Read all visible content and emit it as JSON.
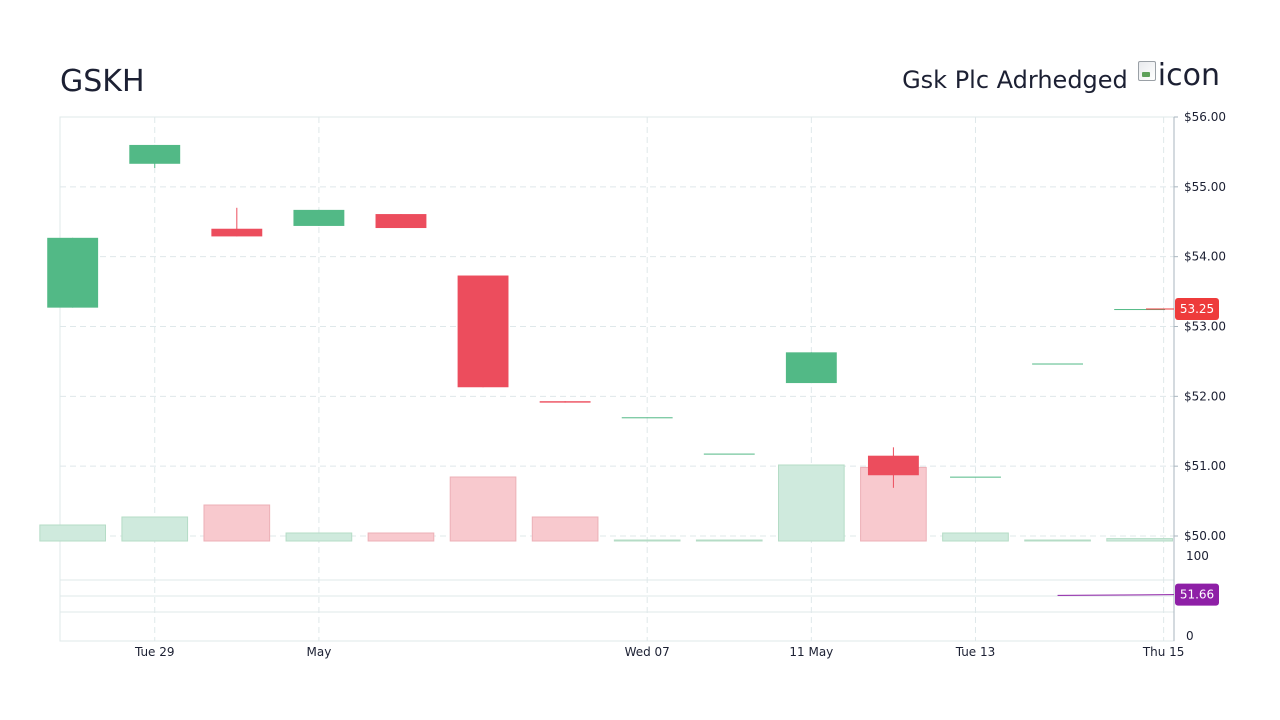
{
  "header": {
    "ticker": "GSKH",
    "company_name": "Gsk Plc Adrhedged",
    "logo_alt": "icon"
  },
  "colors": {
    "up": "#52b986",
    "down": "#ec4d5d",
    "up_volume": "#cfeadd",
    "down_volume": "#f8c9ce",
    "grid": "#dfe8ea",
    "price_tag": "#ee3b3b",
    "indicator": "#8e1fa6"
  },
  "chart_data": {
    "type": "candlestick",
    "price_axis": {
      "min": 50,
      "max": 56,
      "ticks": [
        50,
        51,
        52,
        53,
        54,
        55,
        56
      ],
      "tick_labels": [
        "$50.00",
        "$51.00",
        "$52.00",
        "$53.00",
        "$54.00",
        "$55.00",
        "$56.00"
      ]
    },
    "x_labels": [
      {
        "label": "Tue 29",
        "index": 1
      },
      {
        "label": "May",
        "index": 3
      },
      {
        "label": "Wed 07",
        "index": 7
      },
      {
        "label": "11 May",
        "index": 9
      },
      {
        "label": "Tue 13",
        "index": 11
      },
      {
        "label": "Thu 15",
        "index": 13
      }
    ],
    "candles": [
      {
        "open": 53.27,
        "high": 54.27,
        "low": 53.27,
        "close": 54.27,
        "volume": 0.2
      },
      {
        "open": 55.33,
        "high": 55.6,
        "low": 55.27,
        "close": 55.6,
        "volume": 0.3
      },
      {
        "open": 54.4,
        "high": 54.7,
        "low": 54.29,
        "close": 54.29,
        "volume": 0.45
      },
      {
        "open": 54.44,
        "high": 54.67,
        "low": 54.44,
        "close": 54.67,
        "volume": 0.1
      },
      {
        "open": 54.61,
        "high": 54.61,
        "low": 54.41,
        "close": 54.41,
        "volume": 0.1
      },
      {
        "open": 53.73,
        "high": 53.73,
        "low": 52.13,
        "close": 52.13,
        "volume": 0.8
      },
      {
        "open": 51.93,
        "high": 51.93,
        "low": 51.91,
        "close": 51.91,
        "volume": 0.3
      },
      {
        "open": 51.7,
        "high": 51.7,
        "low": 51.7,
        "close": 51.7,
        "volume": 0.01
      },
      {
        "open": 51.18,
        "high": 51.18,
        "low": 51.18,
        "close": 51.18,
        "volume": 0.01
      },
      {
        "open": 52.19,
        "high": 52.63,
        "low": 52.19,
        "close": 52.63,
        "volume": 0.95
      },
      {
        "open": 51.15,
        "high": 51.27,
        "low": 50.69,
        "close": 50.87,
        "volume": 0.92
      },
      {
        "open": 50.85,
        "high": 50.85,
        "low": 50.85,
        "close": 50.85,
        "volume": 0.1
      },
      {
        "open": 52.47,
        "high": 52.47,
        "low": 52.47,
        "close": 52.47,
        "volume": 0.01
      },
      {
        "open": 53.25,
        "high": 53.25,
        "low": 53.25,
        "close": 53.25,
        "volume": 0.03
      }
    ],
    "last_price_label": "53.25",
    "last_price": 53.25,
    "indicator": {
      "axis_ticks": [
        0,
        100
      ],
      "tick_labels": [
        "0",
        "100"
      ],
      "value_label": "51.66",
      "value": 51.66,
      "line_start_value": 50.8,
      "line_start_index": 12
    }
  }
}
